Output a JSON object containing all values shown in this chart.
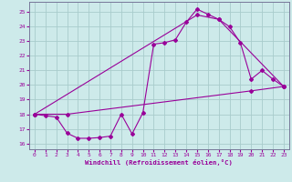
{
  "xlabel": "Windchill (Refroidissement éolien,°C)",
  "bg_color": "#cdeaea",
  "grid_color": "#a8cccc",
  "line_color": "#990099",
  "xlim": [
    -0.5,
    23.5
  ],
  "ylim": [
    15.6,
    25.7
  ],
  "yticks": [
    16,
    17,
    18,
    19,
    20,
    21,
    22,
    23,
    24,
    25
  ],
  "xticks": [
    0,
    1,
    2,
    3,
    4,
    5,
    6,
    7,
    8,
    9,
    10,
    11,
    12,
    13,
    14,
    15,
    16,
    17,
    18,
    19,
    20,
    21,
    22,
    23
  ],
  "curve1_x": [
    0,
    1,
    2,
    3,
    4,
    5,
    6,
    7,
    8,
    9,
    10,
    11,
    12,
    13,
    14,
    15,
    16,
    17,
    18,
    19,
    20,
    21,
    22,
    23
  ],
  "curve1_y": [
    18.0,
    17.9,
    17.8,
    16.7,
    16.35,
    16.35,
    16.4,
    16.5,
    18.0,
    16.65,
    18.1,
    22.8,
    22.9,
    23.1,
    24.3,
    25.2,
    24.85,
    24.5,
    24.0,
    22.9,
    20.4,
    21.0,
    20.4,
    19.9
  ],
  "curve2_x": [
    0,
    15,
    17,
    23
  ],
  "curve2_y": [
    18.0,
    24.8,
    24.5,
    19.9
  ],
  "curve3_x": [
    0,
    3,
    20,
    23
  ],
  "curve3_y": [
    18.0,
    18.0,
    19.6,
    19.9
  ]
}
